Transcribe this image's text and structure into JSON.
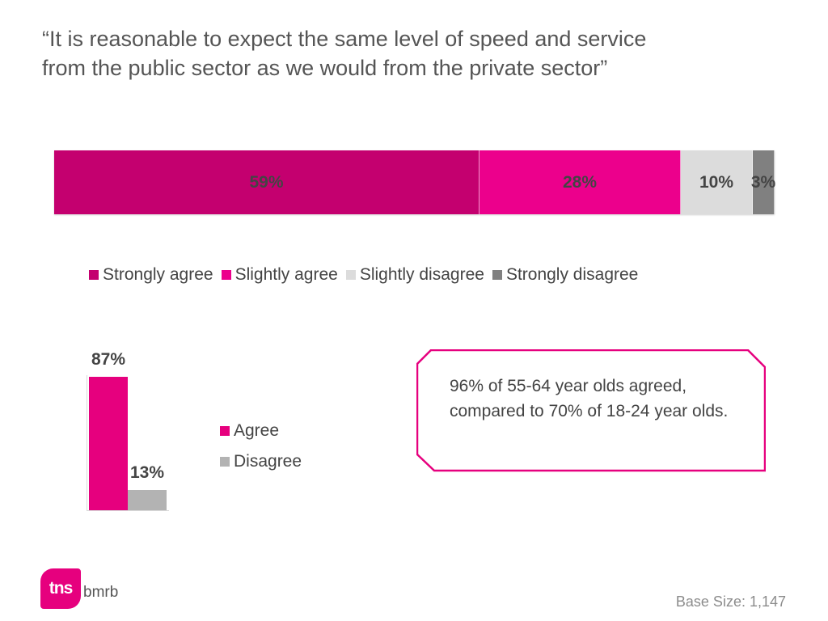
{
  "title": {
    "line1": "“It is reasonable to expect the same level of speed and service",
    "line2": "from the public sector as we would from the private sector”"
  },
  "chart_data": [
    {
      "type": "bar",
      "orientation": "horizontal-stacked",
      "categories": [
        ""
      ],
      "series": [
        {
          "name": "Strongly agree",
          "values": [
            59
          ],
          "label": "59%",
          "color": "#c4006f"
        },
        {
          "name": "Slightly agree",
          "values": [
            28
          ],
          "label": "28%",
          "color": "#ec008c"
        },
        {
          "name": "Slightly disagree",
          "values": [
            10
          ],
          "label": "10%",
          "color": "#dcdcdc"
        },
        {
          "name": "Strongly disagree",
          "values": [
            3
          ],
          "label": "3%",
          "color": "#808080"
        }
      ],
      "legend_position": "bottom",
      "grid": false
    },
    {
      "type": "bar",
      "categories": [
        "Agree",
        "Disagree"
      ],
      "values": [
        87,
        13
      ],
      "labels": [
        "87%",
        "13%"
      ],
      "colors": [
        "#e6007e",
        "#b3b3b3"
      ],
      "legend_position": "right",
      "ylim": [
        0,
        100
      ],
      "grid": false
    }
  ],
  "callout": {
    "text": "96% of 55-64 year olds agreed, compared to 70% of 18-24 year olds.",
    "border_color": "#e6007e"
  },
  "logo": {
    "main": "tns",
    "sub": "bmrb",
    "color": "#e6007e"
  },
  "base_size": "Base Size: 1,147"
}
